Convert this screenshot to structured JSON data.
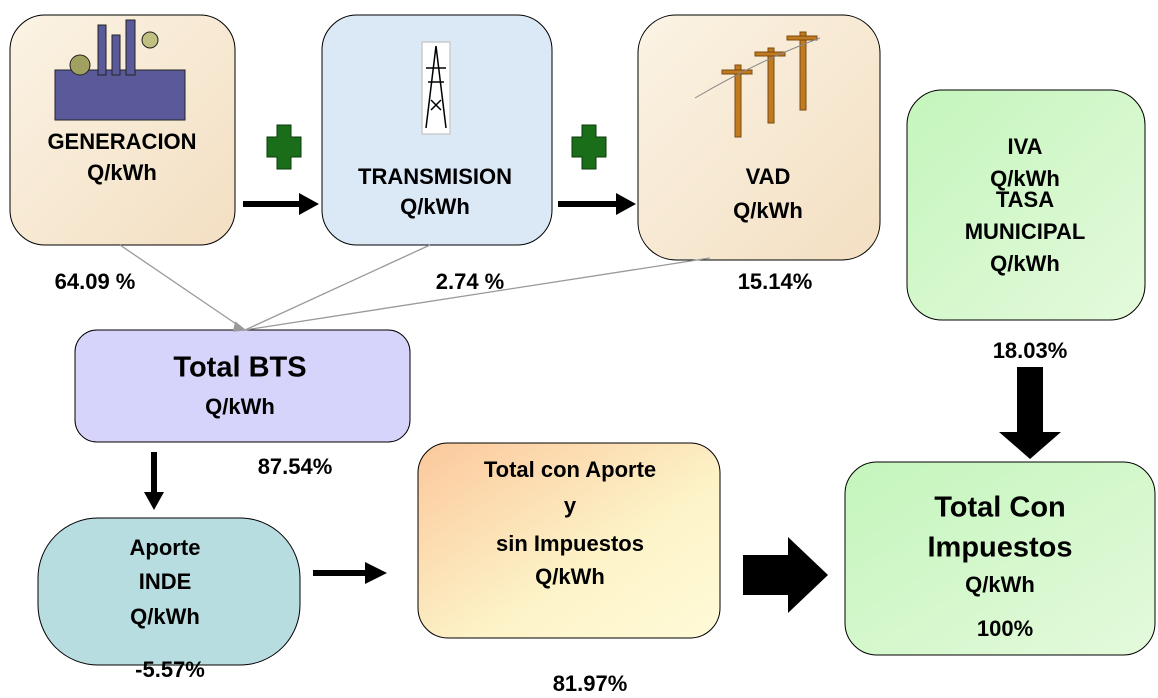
{
  "nodes": [
    {
      "lines": [
        "GENERACION",
        "Q/kWh"
      ],
      "share": "64.09 %"
    },
    {
      "lines": [
        "TRANSMISION",
        "Q/kWh"
      ],
      "share": "2.74 %"
    },
    {
      "lines": [
        "VAD",
        "Q/kWh"
      ],
      "share": "15.14%"
    },
    {
      "lines": [
        "IVA",
        "Q/kWh",
        "TASA",
        "MUNICIPAL",
        "Q/kWh"
      ],
      "share": "18.03%"
    },
    {
      "lines": [
        "Total BTS",
        "Q/kWh"
      ],
      "share": "87.54%"
    },
    {
      "lines": [
        "Aporte",
        "INDE",
        "Q/kWh"
      ],
      "share": "-5.57%"
    },
    {
      "lines": [
        "Total con Aporte",
        "y",
        "sin Impuestos",
        "Q/kWh"
      ],
      "share": "81.97%"
    },
    {
      "lines": [
        "Total Con",
        "Impuestos",
        "Q/kWh"
      ],
      "share": "100%"
    }
  ]
}
